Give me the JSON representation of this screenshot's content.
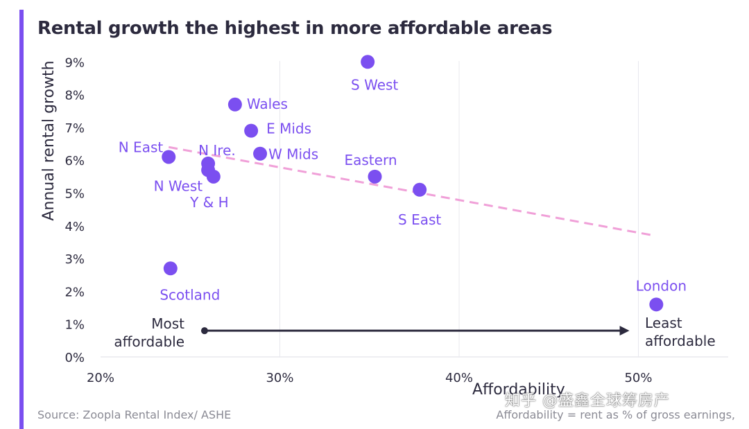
{
  "title": "Rental growth the highest in more affordable areas",
  "source": "Source: Zoopla Rental Index/ ASHE",
  "note": "Affordability = rent as % of gross earnings,",
  "watermark": "知乎 @盛鑫全球筹房产",
  "colors": {
    "accent": "#7b4ff0",
    "point": "#7b4ff0",
    "trend": "#f0a0d8",
    "arrow": "#2c2a3e",
    "grid": "#e8e8ee"
  },
  "chart_data": {
    "type": "scatter",
    "title": "Rental growth the highest in more affordable areas",
    "xlabel": "Affordability",
    "ylabel": "Annual rental growth",
    "xlim": [
      20,
      55
    ],
    "ylim": [
      0,
      9.3
    ],
    "x_ticks": [
      20,
      30,
      40,
      50
    ],
    "x_tick_labels": [
      "20%",
      "30%",
      "40%",
      "50%"
    ],
    "y_ticks": [
      0,
      1,
      2,
      3,
      4,
      5,
      6,
      7,
      8,
      9
    ],
    "y_tick_labels": [
      "0%",
      "1%",
      "2%",
      "3%",
      "4%",
      "5%",
      "6%",
      "7%",
      "8%",
      "9%"
    ],
    "grid": "vertical",
    "points": [
      {
        "label": "S West",
        "x": 34.9,
        "y": 9.0
      },
      {
        "label": "Wales",
        "x": 27.5,
        "y": 7.7
      },
      {
        "label": "E Mids",
        "x": 28.4,
        "y": 6.9
      },
      {
        "label": "W Mids",
        "x": 28.9,
        "y": 6.2
      },
      {
        "label": "N East",
        "x": 23.8,
        "y": 6.1
      },
      {
        "label": "N Ire.",
        "x": 26.0,
        "y": 5.9
      },
      {
        "label": "N West",
        "x": 26.0,
        "y": 5.7
      },
      {
        "label": "Y & H",
        "x": 26.3,
        "y": 5.5
      },
      {
        "label": "Eastern",
        "x": 35.3,
        "y": 5.5
      },
      {
        "label": "S East",
        "x": 37.8,
        "y": 5.1
      },
      {
        "label": "Scotland",
        "x": 23.9,
        "y": 2.7
      },
      {
        "label": "London",
        "x": 51.0,
        "y": 1.6
      }
    ],
    "trendline": {
      "x": [
        23.8,
        50.9
      ],
      "y": [
        6.4,
        3.7
      ]
    },
    "arrow": {
      "from_x": 25.8,
      "to_x": 49.5,
      "y": 0.8,
      "left_label": [
        "Most",
        "affordable"
      ],
      "right_label": [
        "Least",
        "affordable"
      ]
    }
  }
}
